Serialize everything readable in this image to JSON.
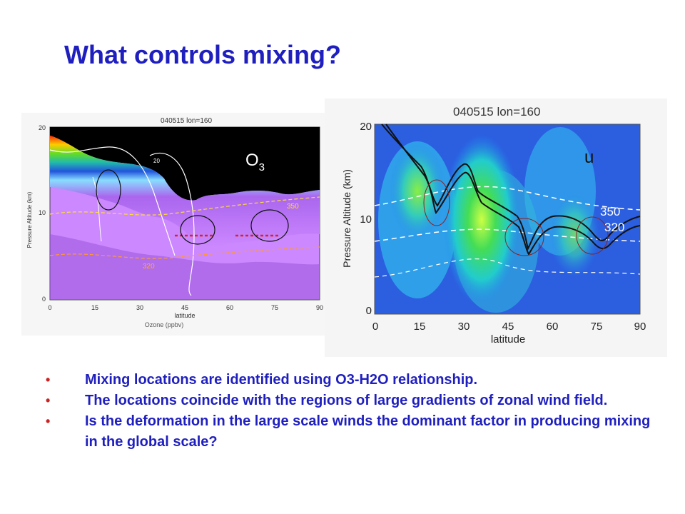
{
  "slide": {
    "title": "What controls mixing?"
  },
  "ozone_plot": {
    "title": "040515 lon=160",
    "species_label": "O",
    "species_sub": "3",
    "ylabel": "Pressure Altitude (km)",
    "xlabel": "latitude",
    "caption": "Ozone (ppbv)",
    "x_ticks": [
      "0",
      "15",
      "30",
      "45",
      "60",
      "75",
      "90"
    ],
    "y_ticks": [
      "0",
      "10",
      "20"
    ],
    "contour_labels": [
      "20",
      "350",
      "320"
    ]
  },
  "wind_plot": {
    "title": "040515 lon=160",
    "variable_label": "u",
    "ylabel": "Pressure Altitude (km)",
    "xlabel": "latitude",
    "x_ticks": [
      "0",
      "15",
      "30",
      "45",
      "60",
      "75",
      "90"
    ],
    "y_ticks": [
      "0",
      "10",
      "20"
    ],
    "contour_labels": [
      "350",
      "320"
    ]
  },
  "bullets": [
    "Mixing locations are identified using O3-H2O relationship.",
    "The locations coincide with the regions of large gradients of zonal wind field.",
    "Is the deformation in the large scale winds the dominant factor in producing mixing in the global scale?"
  ],
  "bullet_symbol": "•",
  "colors": {
    "title": "#1f1fbf",
    "bullet_text": "#1f1fbf",
    "bullet_marker": "#cc2222"
  }
}
